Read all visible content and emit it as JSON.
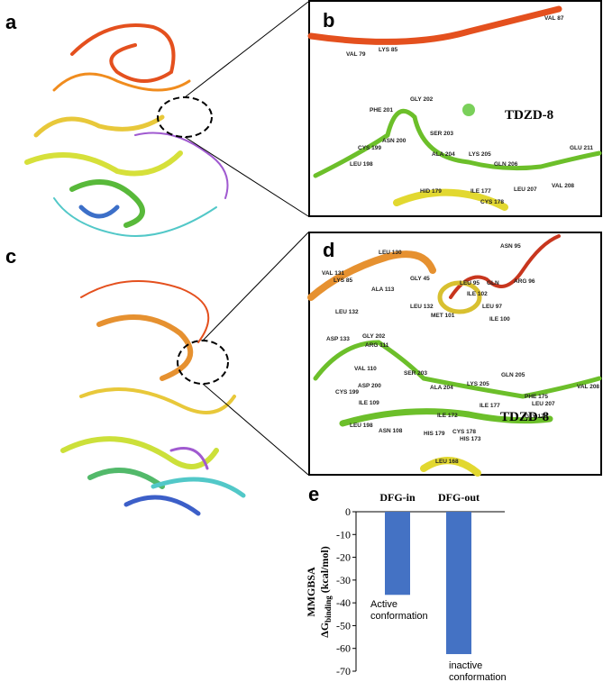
{
  "figure": {
    "panel_labels": [
      "a",
      "b",
      "c",
      "d",
      "e"
    ],
    "panel_b": {
      "ligand": "TDZD-8",
      "residues": [
        "VAL 87",
        "VAL 79",
        "LYS 85",
        "GLY 202",
        "PHE 201",
        "SER 203",
        "ASN 200",
        "CYS 199",
        "LEU 198",
        "ALA 204",
        "LYS 205",
        "GLN 206",
        "GLU 211",
        "VAL 208",
        "LEU 207",
        "ILE 177",
        "HID 179",
        "CYS 178"
      ]
    },
    "panel_d": {
      "ligand": "TDZD-8",
      "residues": [
        "ASN 95",
        "LEU 130",
        "VAL 131",
        "LYS 85",
        "GLY 45",
        "ALA 113",
        "LEU 132",
        "LEU 95",
        "GLN",
        "ARG 96",
        "ILE 102",
        "LEU 97",
        "MET 101",
        "ILE 100",
        "LEU 132",
        "ASP 133",
        "GLY 202",
        "ARG 111",
        "VAL 110",
        "SER 203",
        "GLN 205",
        "ASP 200",
        "ALA 204",
        "LYS 205",
        "PHE 175",
        "LEU 207",
        "VAL 208",
        "CYS 199",
        "ILE 109",
        "ILE 177",
        "GLY 176",
        "ILE 172",
        "LEU 198",
        "ASN 108",
        "CYS 178",
        "HIS 179",
        "HIS 173",
        "LEU 168"
      ]
    }
  },
  "chart_data": {
    "type": "bar",
    "categories": [
      "DFG-in",
      "DFG-out"
    ],
    "values": [
      -36.5,
      -62.5
    ],
    "color": "#4472c4",
    "ylabel": {
      "line1": "MMGBSA",
      "symbol": "ΔG",
      "subscript": "binding",
      "unit": " (kcal/mol)"
    },
    "ylim": [
      -70,
      0
    ],
    "yticks": [
      0,
      -10,
      -20,
      -30,
      -40,
      -50,
      -60,
      -70
    ],
    "annotations": [
      [
        "Active",
        "conformation"
      ],
      [
        "inactive",
        "conformation"
      ]
    ]
  }
}
